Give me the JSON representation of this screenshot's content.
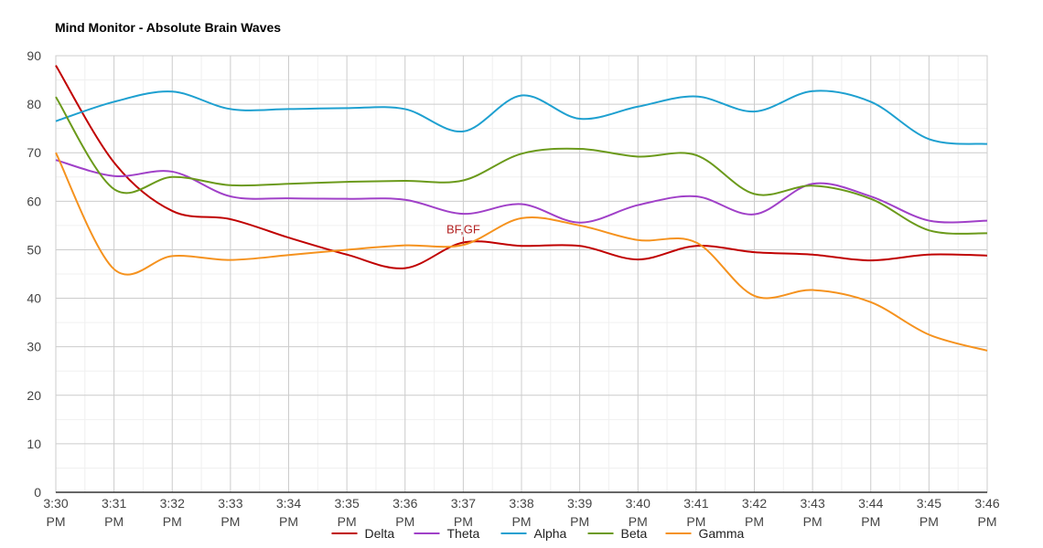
{
  "chart_data": {
    "type": "line",
    "title": "Mind Monitor -  Absolute Brain Waves",
    "x": [
      [
        "3:30",
        "PM"
      ],
      [
        "3:31",
        "PM"
      ],
      [
        "3:32",
        "PM"
      ],
      [
        "3:33",
        "PM"
      ],
      [
        "3:34",
        "PM"
      ],
      [
        "3:35",
        "PM"
      ],
      [
        "3:36",
        "PM"
      ],
      [
        "3:37",
        "PM"
      ],
      [
        "3:38",
        "PM"
      ],
      [
        "3:39",
        "PM"
      ],
      [
        "3:40",
        "PM"
      ],
      [
        "3:41",
        "PM"
      ],
      [
        "3:42",
        "PM"
      ],
      [
        "3:43",
        "PM"
      ],
      [
        "3:44",
        "PM"
      ],
      [
        "3:45",
        "PM"
      ],
      [
        "3:46",
        "PM"
      ]
    ],
    "ylim": [
      0,
      90
    ],
    "yticks": [
      0,
      10,
      20,
      30,
      40,
      50,
      60,
      70,
      80,
      90
    ],
    "grid": true,
    "legend": "bottom",
    "series": [
      {
        "name": "Delta",
        "color": "#c00000",
        "values": [
          88,
          68,
          58,
          56.3,
          52.5,
          49,
          46.2,
          51.5,
          50.8,
          50.8,
          48,
          50.8,
          49.5,
          49,
          47.8,
          49,
          48.8
        ]
      },
      {
        "name": "Theta",
        "color": "#a040c8",
        "values": [
          68.5,
          65.2,
          66.1,
          61,
          60.6,
          60.5,
          60.3,
          57.4,
          59.4,
          55.6,
          59.2,
          61,
          57.3,
          63.6,
          61,
          56,
          56
        ]
      },
      {
        "name": "Alpha",
        "color": "#1ea0d0",
        "values": [
          76.5,
          80.5,
          82.6,
          79,
          79,
          79.2,
          79,
          74.4,
          81.8,
          77,
          79.5,
          81.6,
          78.5,
          82.7,
          80.5,
          72.8,
          71.8
        ]
      },
      {
        "name": "Beta",
        "color": "#6b9a1b",
        "values": [
          81.5,
          62.5,
          65,
          63.3,
          63.6,
          64,
          64.2,
          64.3,
          69.8,
          70.8,
          69.2,
          69.5,
          61.5,
          63.2,
          60.5,
          54,
          53.4
        ]
      },
      {
        "name": "Gamma",
        "color": "#f5921e",
        "values": [
          70,
          46,
          48.7,
          47.9,
          48.9,
          50,
          50.9,
          51,
          56.5,
          55,
          52,
          51.5,
          40.5,
          41.7,
          39.2,
          32.5,
          29.2
        ]
      }
    ],
    "annotations": [
      {
        "text": "BF,GF",
        "x_index": 7,
        "y": 53.4,
        "color": "#b22222"
      }
    ]
  }
}
